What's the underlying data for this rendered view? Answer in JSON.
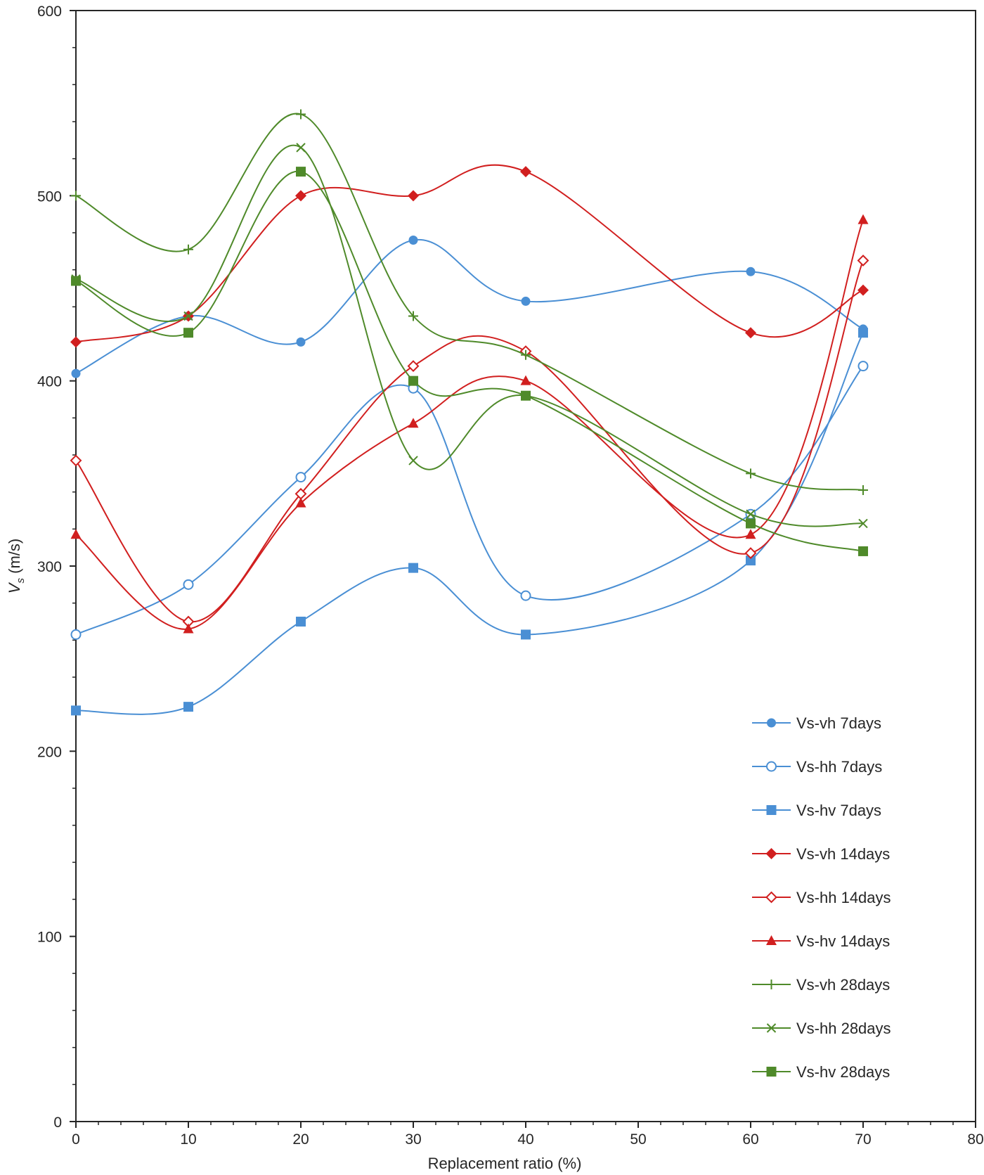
{
  "chart_data": {
    "type": "line",
    "title": "",
    "xlabel": "Replacement ratio (%)",
    "ylabel_main": "V",
    "ylabel_sub": "s",
    "ylabel_unit": " (m/s)",
    "xlim": [
      0,
      80
    ],
    "ylim": [
      0,
      600
    ],
    "xticks": [
      0,
      10,
      20,
      30,
      40,
      50,
      60,
      70,
      80
    ],
    "yticks": [
      0,
      100,
      200,
      300,
      400,
      500,
      600
    ],
    "grid": false,
    "legend_position": "bottom-right",
    "x": [
      0,
      10,
      20,
      30,
      40,
      60,
      70
    ],
    "series": [
      {
        "name": "Vs-vh 7days",
        "color": "#4a8fd4",
        "marker": "circle-filled",
        "values": [
          404,
          435,
          421,
          476,
          443,
          459,
          428
        ]
      },
      {
        "name": "Vs-hh 7days",
        "color": "#4a8fd4",
        "marker": "circle-open",
        "values": [
          263,
          290,
          348,
          396,
          284,
          328,
          408
        ]
      },
      {
        "name": "Vs-hv  7days",
        "color": "#4a8fd4",
        "marker": "square-filled",
        "values": [
          222,
          224,
          270,
          299,
          263,
          303,
          426
        ]
      },
      {
        "name": "Vs-vh 14days",
        "color": "#d11f1f",
        "marker": "diamond-filled",
        "values": [
          421,
          435,
          500,
          500,
          513,
          426,
          449
        ]
      },
      {
        "name": "Vs-hh 14days",
        "color": "#d11f1f",
        "marker": "diamond-open",
        "values": [
          357,
          270,
          339,
          408,
          416,
          307,
          465
        ]
      },
      {
        "name": "Vs-hv 14days",
        "color": "#d11f1f",
        "marker": "triangle",
        "values": [
          317,
          266,
          334,
          377,
          400,
          317,
          487
        ]
      },
      {
        "name": "Vs-vh 28days",
        "color": "#4f8a2a",
        "marker": "plus",
        "values": [
          500,
          471,
          544,
          435,
          414,
          350,
          341
        ]
      },
      {
        "name": "Vs-hh 28days",
        "color": "#4f8a2a",
        "marker": "x",
        "values": [
          455,
          435,
          526,
          357,
          392,
          328,
          323
        ]
      },
      {
        "name": "Vs-hv 28days",
        "color": "#4f8a2a",
        "marker": "square-filled",
        "values": [
          454,
          426,
          513,
          400,
          392,
          323,
          308
        ]
      }
    ]
  }
}
